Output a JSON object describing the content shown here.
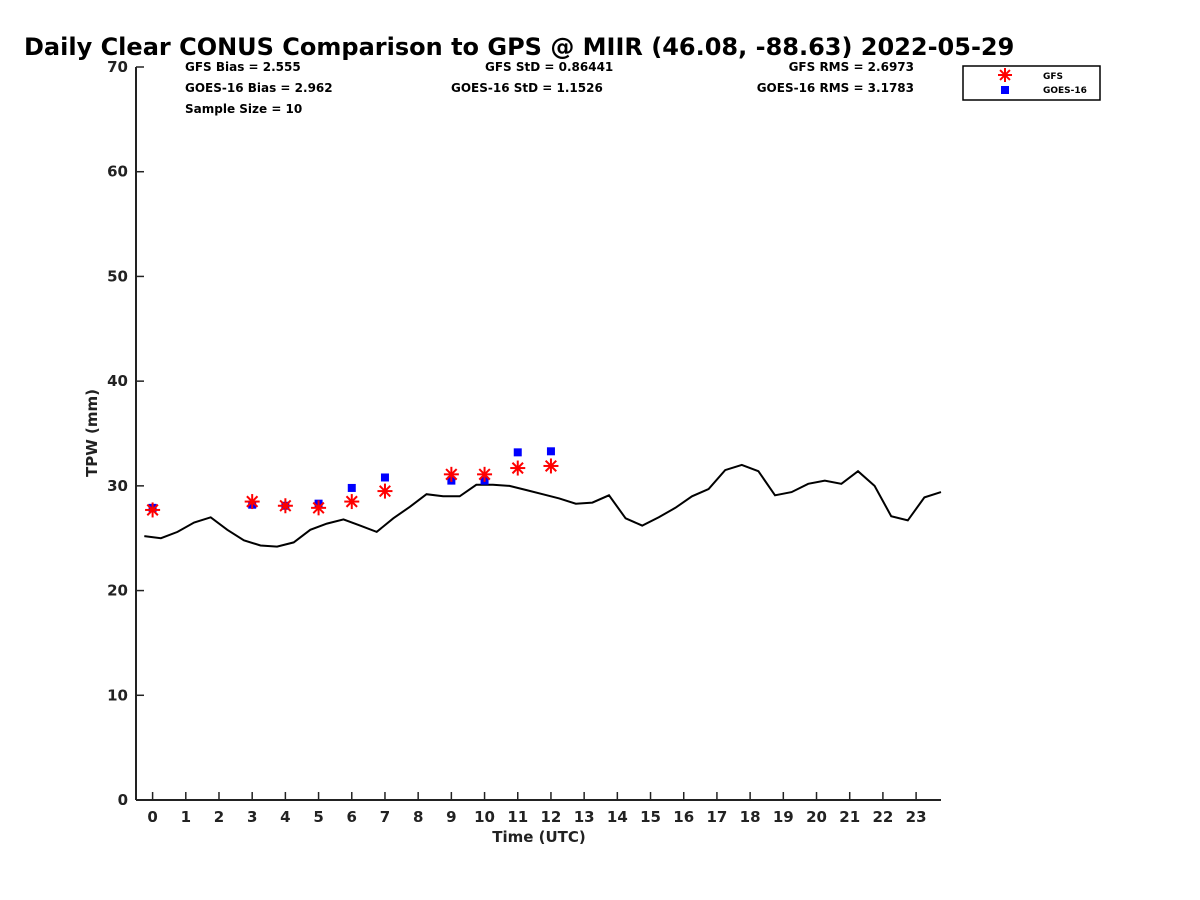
{
  "chart_data": {
    "type": "line",
    "title": "Daily Clear CONUS Comparison to GPS @ MIIR (46.08, -88.63) 2022-05-29",
    "xlabel": "Time (UTC)",
    "ylabel": "TPW (mm)",
    "xlim": [
      -0.5,
      23.75
    ],
    "ylim": [
      0,
      70
    ],
    "x_ticks": [
      0,
      1,
      2,
      3,
      4,
      5,
      6,
      7,
      8,
      9,
      10,
      11,
      12,
      13,
      14,
      15,
      16,
      17,
      18,
      19,
      20,
      21,
      22,
      23
    ],
    "y_ticks": [
      0,
      10,
      20,
      30,
      40,
      50,
      60,
      70
    ],
    "grid": false,
    "legend_position": "top-right",
    "stats": {
      "gfs_bias": "GFS Bias = 2.555",
      "goes_bias": "GOES-16 Bias = 2.962",
      "sample_size": "Sample Size = 10",
      "gfs_std": "GFS StD = 0.86441",
      "goes_std": "GOES-16 StD = 1.1526",
      "gfs_rms": "GFS RMS = 2.6973",
      "goes_rms": "GOES-16 RMS = 3.1783"
    },
    "series": [
      {
        "kind": "line",
        "color": "#000000",
        "x": [
          -0.25,
          0.25,
          0.75,
          1.25,
          1.75,
          2.25,
          2.75,
          3.25,
          3.75,
          4.25,
          4.75,
          5.25,
          5.75,
          6.25,
          6.75,
          7.25,
          7.75,
          8.25,
          8.75,
          9.25,
          9.75,
          10.25,
          10.75,
          11.25,
          11.75,
          12.25,
          12.75,
          13.25,
          13.75,
          14.25,
          14.75,
          15.25,
          15.75,
          16.25,
          16.75,
          17.25,
          17.75,
          18.25,
          18.75,
          19.25,
          19.75,
          20.25,
          20.75,
          21.25,
          21.75,
          22.25,
          22.75,
          23.25,
          23.75
        ],
        "y": [
          25.2,
          25.0,
          25.6,
          26.5,
          27.0,
          25.8,
          24.8,
          24.3,
          24.2,
          24.6,
          25.8,
          26.4,
          26.8,
          26.2,
          25.6,
          26.9,
          28.0,
          29.2,
          29.0,
          29.0,
          30.1,
          30.1,
          30.0,
          29.6,
          29.2,
          28.8,
          28.3,
          28.4,
          29.1,
          26.9,
          26.2,
          27.0,
          27.9,
          29.0,
          29.7,
          31.5,
          32.0,
          31.4,
          29.1,
          29.4,
          30.2,
          30.5,
          30.2,
          31.4,
          30.0,
          27.1,
          26.7,
          28.9,
          29.4
        ]
      },
      {
        "name": "GFS",
        "kind": "scatter",
        "marker": "asterisk",
        "color": "#ff0000",
        "x": [
          0.0,
          3.0,
          4.0,
          5.0,
          6.0,
          7.0,
          9.0,
          10.0,
          11.0,
          12.0
        ],
        "y": [
          27.7,
          28.5,
          28.1,
          27.9,
          28.5,
          29.5,
          31.1,
          31.1,
          31.7,
          31.9
        ]
      },
      {
        "name": "GOES-16",
        "kind": "scatter",
        "marker": "square",
        "color": "#0000ff",
        "x": [
          0.0,
          3.0,
          4.0,
          5.0,
          6.0,
          7.0,
          9.0,
          10.0,
          11.0,
          12.0
        ],
        "y": [
          27.9,
          28.2,
          28.1,
          28.3,
          29.8,
          30.8,
          30.5,
          30.5,
          33.2,
          33.3
        ]
      }
    ]
  }
}
